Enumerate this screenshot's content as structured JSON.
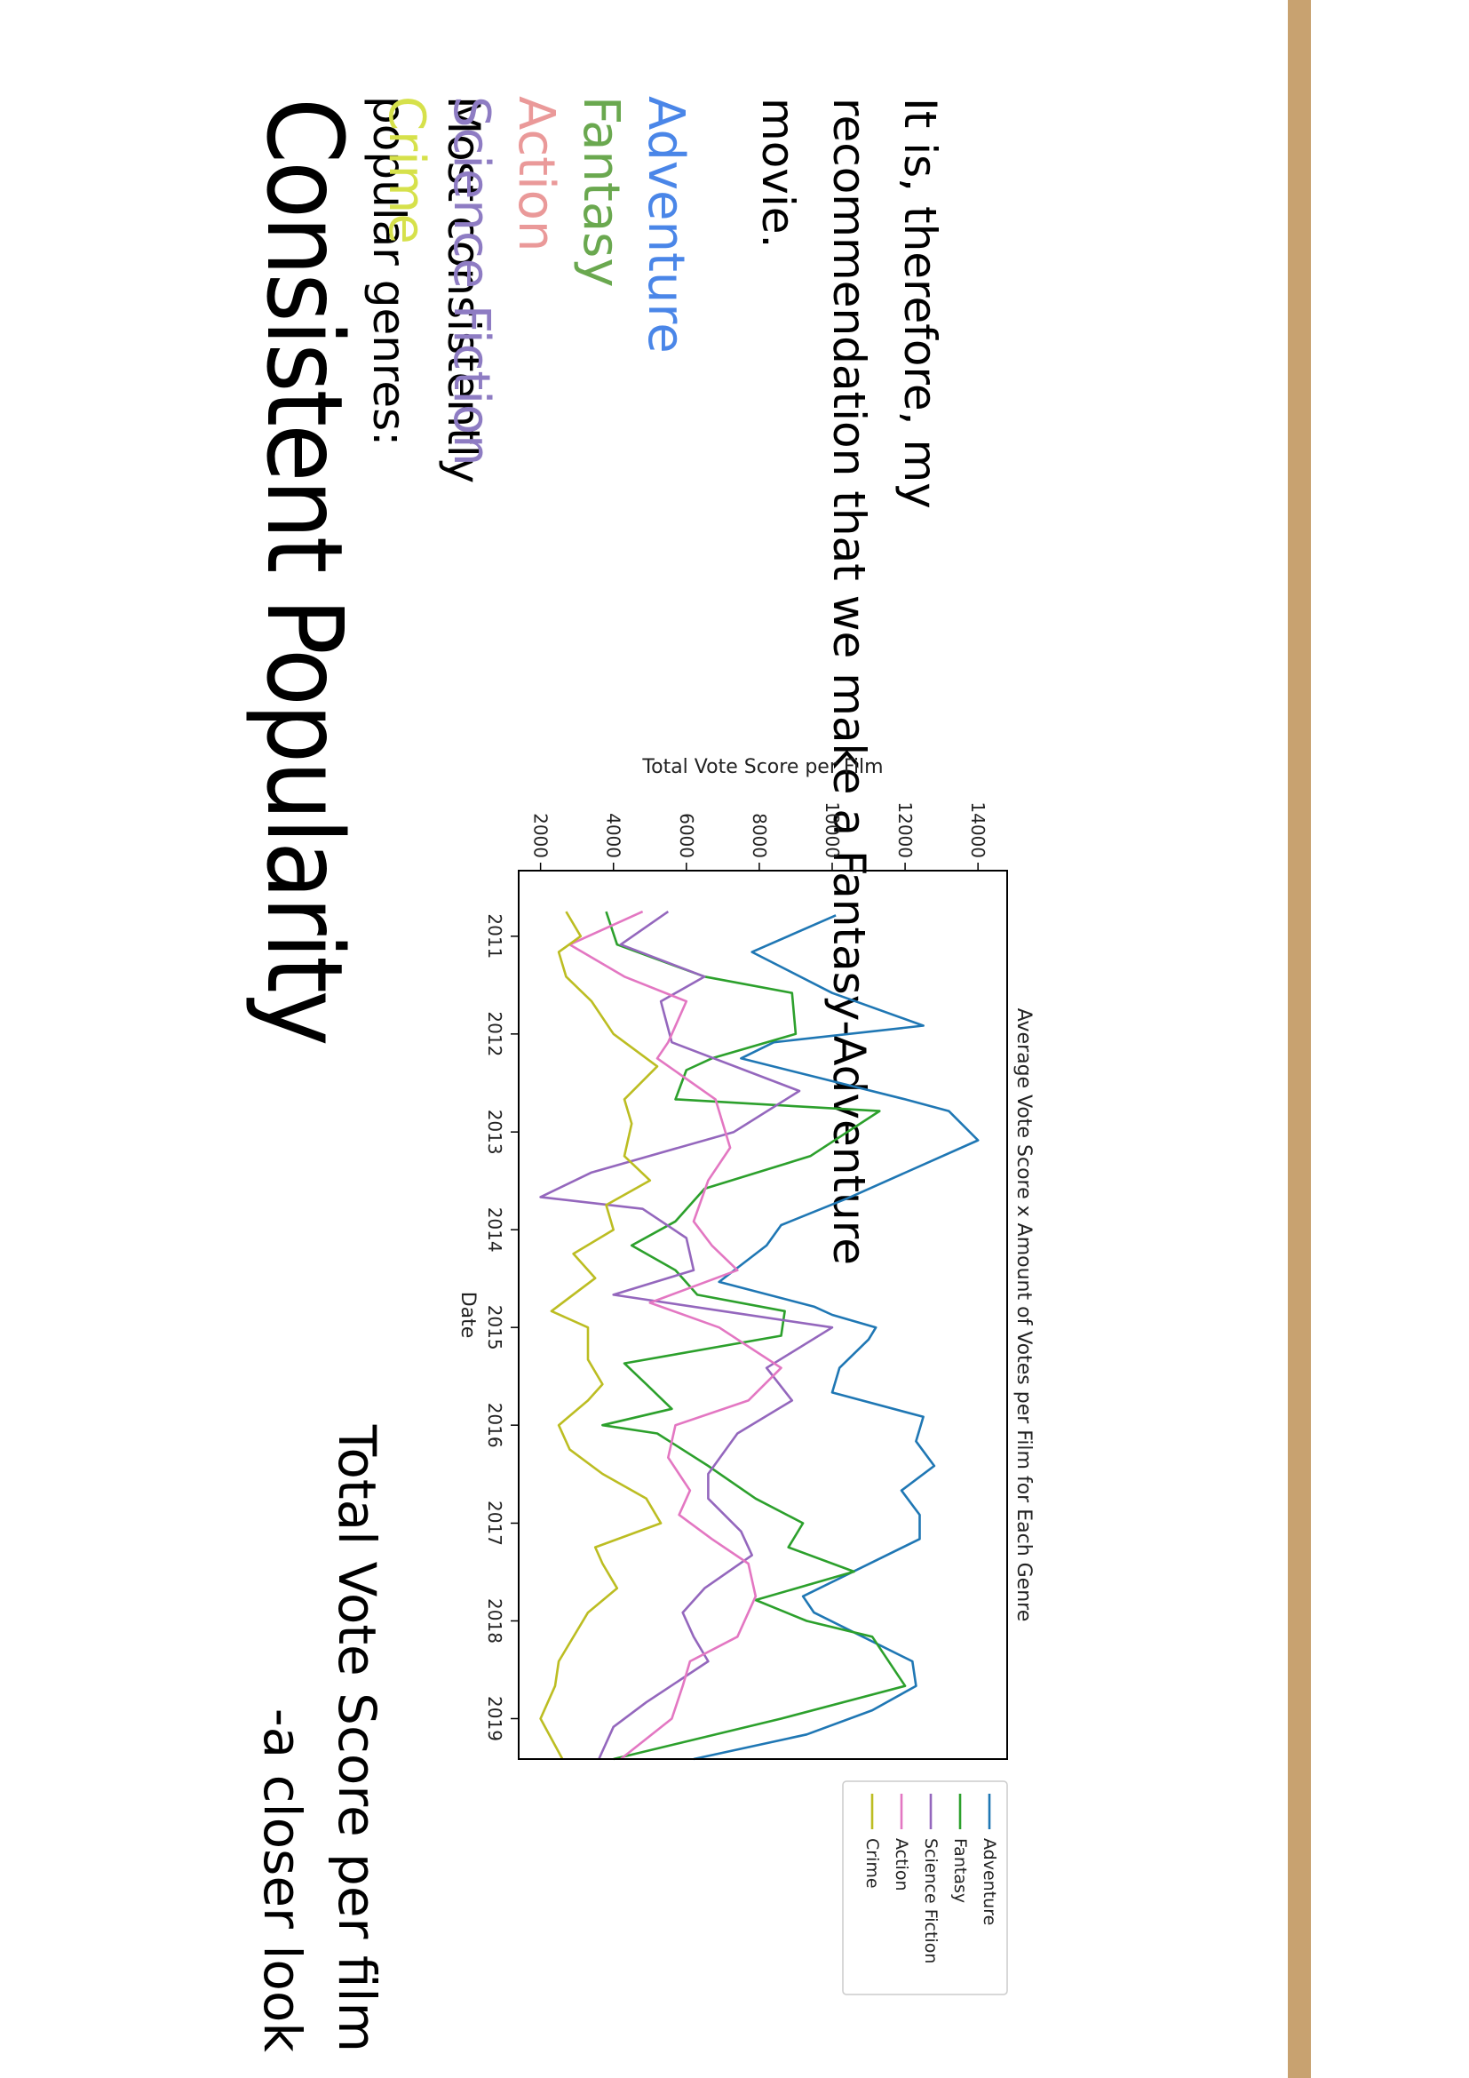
{
  "slide": {
    "title": "Consistent Popularity",
    "subtitle_lines": [
      "Total Vote Score per film",
      "-a closer look"
    ],
    "intro_lines": [
      "Most consistently",
      "popular genres:"
    ],
    "genres": [
      {
        "label": "Adventure",
        "color": "#4a86e8"
      },
      {
        "label": "Fantasy",
        "color": "#6aa84f"
      },
      {
        "label": "Action",
        "color": "#ea9999"
      },
      {
        "label": "Science Fiction",
        "color": "#8e7cc3"
      },
      {
        "label": "Crime",
        "color": "#d6e14b"
      }
    ],
    "closing_lines": [
      "It is, therefore, my",
      "recommendation that we make a Fantasy-Adventure movie."
    ],
    "accent_color": "#c8a270"
  },
  "chart_data": {
    "type": "line",
    "title": "Average Vote Score x Amount of Votes per Film for Each Genre",
    "xlabel": "Date",
    "ylabel": "Total Vote Score per Film",
    "xlim": [
      "2010-05-01",
      "2019-06-01"
    ],
    "ylim": [
      1400,
      14800
    ],
    "xticks": [
      "2011",
      "2012",
      "2013",
      "2014",
      "2015",
      "2016",
      "2017",
      "2018",
      "2019"
    ],
    "yticks": [
      2000,
      4000,
      6000,
      8000,
      10000,
      12000,
      14000
    ],
    "grid": false,
    "legend": "outside-right",
    "series": [
      {
        "name": "Adventure",
        "color": "#1f77b4",
        "points": [
          [
            "2010-10-15",
            10100
          ],
          [
            "2011-03-01",
            7800
          ],
          [
            "2011-08-01",
            10000
          ],
          [
            "2011-12-01",
            12500
          ],
          [
            "2012-02-01",
            8400
          ],
          [
            "2012-04-01",
            7500
          ],
          [
            "2012-09-01",
            12000
          ],
          [
            "2012-10-15",
            13200
          ],
          [
            "2013-02-01",
            14000
          ],
          [
            "2013-09-01",
            10500
          ],
          [
            "2013-12-15",
            8600
          ],
          [
            "2014-03-01",
            8200
          ],
          [
            "2014-07-15",
            6900
          ],
          [
            "2014-10-15",
            9500
          ],
          [
            "2014-11-15",
            10000
          ],
          [
            "2015-01-01",
            11200
          ],
          [
            "2015-02-15",
            11000
          ],
          [
            "2015-06-01",
            10200
          ],
          [
            "2015-09-01",
            10000
          ],
          [
            "2015-12-01",
            12500
          ],
          [
            "2016-03-01",
            12300
          ],
          [
            "2016-06-01",
            12800
          ],
          [
            "2016-09-01",
            11900
          ],
          [
            "2016-12-01",
            12400
          ],
          [
            "2017-03-01",
            12400
          ],
          [
            "2017-10-01",
            9200
          ],
          [
            "2017-12-01",
            9500
          ],
          [
            "2018-06-01",
            12200
          ],
          [
            "2018-09-01",
            12300
          ],
          [
            "2018-12-01",
            11100
          ],
          [
            "2019-03-01",
            9300
          ],
          [
            "2019-06-01",
            6200
          ]
        ]
      },
      {
        "name": "Fantasy",
        "color": "#2ca02c",
        "points": [
          [
            "2010-10-01",
            3800
          ],
          [
            "2011-02-01",
            4100
          ],
          [
            "2011-06-01",
            6500
          ],
          [
            "2011-08-01",
            8900
          ],
          [
            "2012-01-01",
            9000
          ],
          [
            "2012-04-01",
            6700
          ],
          [
            "2012-05-15",
            6000
          ],
          [
            "2012-09-01",
            5700
          ],
          [
            "2012-10-15",
            11300
          ],
          [
            "2013-04-01",
            9400
          ],
          [
            "2013-08-01",
            6500
          ],
          [
            "2013-12-01",
            5700
          ],
          [
            "2014-03-01",
            4500
          ],
          [
            "2014-06-01",
            5700
          ],
          [
            "2014-09-01",
            6300
          ],
          [
            "2014-11-01",
            8700
          ],
          [
            "2015-02-01",
            8600
          ],
          [
            "2015-05-15",
            4300
          ],
          [
            "2015-08-01",
            4900
          ],
          [
            "2015-11-01",
            5600
          ],
          [
            "2016-01-01",
            3700
          ],
          [
            "2016-02-01",
            5200
          ],
          [
            "2016-06-01",
            6600
          ],
          [
            "2016-10-01",
            7900
          ],
          [
            "2017-01-01",
            9200
          ],
          [
            "2017-04-01",
            8800
          ],
          [
            "2017-07-01",
            10600
          ],
          [
            "2017-10-15",
            7900
          ],
          [
            "2018-01-01",
            9300
          ],
          [
            "2018-03-01",
            11100
          ],
          [
            "2018-09-01",
            12000
          ],
          [
            "2019-01-01",
            8600
          ],
          [
            "2019-06-01",
            4000
          ]
        ]
      },
      {
        "name": "Science Fiction",
        "color": "#9467bd",
        "points": [
          [
            "2010-10-01",
            5500
          ],
          [
            "2011-02-01",
            4200
          ],
          [
            "2011-06-01",
            6500
          ],
          [
            "2011-09-01",
            5300
          ],
          [
            "2012-02-01",
            5600
          ],
          [
            "2012-08-01",
            9100
          ],
          [
            "2013-01-01",
            7300
          ],
          [
            "2013-06-01",
            3400
          ],
          [
            "2013-09-01",
            2000
          ],
          [
            "2013-10-15",
            4800
          ],
          [
            "2014-02-01",
            6000
          ],
          [
            "2014-06-01",
            6200
          ],
          [
            "2014-09-01",
            4000
          ],
          [
            "2014-11-01",
            7000
          ],
          [
            "2015-01-01",
            10000
          ],
          [
            "2015-06-01",
            8200
          ],
          [
            "2015-10-01",
            8900
          ],
          [
            "2016-02-01",
            7400
          ],
          [
            "2016-07-01",
            6600
          ],
          [
            "2016-10-01",
            6600
          ],
          [
            "2017-02-01",
            7500
          ],
          [
            "2017-05-01",
            7800
          ],
          [
            "2017-09-01",
            6500
          ],
          [
            "2017-12-01",
            5900
          ],
          [
            "2018-03-01",
            6200
          ],
          [
            "2018-06-01",
            6600
          ],
          [
            "2018-11-01",
            4900
          ],
          [
            "2019-02-01",
            4000
          ],
          [
            "2019-06-01",
            3600
          ]
        ]
      },
      {
        "name": "Action",
        "color": "#e377c2",
        "points": [
          [
            "2010-10-01",
            4800
          ],
          [
            "2011-02-01",
            2800
          ],
          [
            "2011-06-01",
            4300
          ],
          [
            "2011-09-01",
            6000
          ],
          [
            "2012-02-01",
            5500
          ],
          [
            "2012-04-01",
            5200
          ],
          [
            "2012-09-01",
            6800
          ],
          [
            "2013-03-01",
            7200
          ],
          [
            "2013-07-01",
            6600
          ],
          [
            "2013-12-01",
            6200
          ],
          [
            "2014-03-01",
            6700
          ],
          [
            "2014-06-01",
            7400
          ],
          [
            "2014-10-01",
            5000
          ],
          [
            "2015-01-01",
            6900
          ],
          [
            "2015-06-01",
            8600
          ],
          [
            "2015-10-01",
            7700
          ],
          [
            "2016-01-01",
            5700
          ],
          [
            "2016-05-01",
            5500
          ],
          [
            "2016-09-01",
            6100
          ],
          [
            "2016-12-01",
            5800
          ],
          [
            "2017-03-01",
            6700
          ],
          [
            "2017-06-01",
            7700
          ],
          [
            "2017-10-01",
            7900
          ],
          [
            "2018-03-01",
            7400
          ],
          [
            "2018-06-01",
            6100
          ],
          [
            "2018-09-01",
            5900
          ],
          [
            "2019-01-01",
            5600
          ],
          [
            "2019-06-01",
            4200
          ]
        ]
      },
      {
        "name": "Crime",
        "color": "#bcbd22",
        "points": [
          [
            "2010-10-01",
            2700
          ],
          [
            "2011-01-01",
            3100
          ],
          [
            "2011-03-01",
            2500
          ],
          [
            "2011-06-01",
            2700
          ],
          [
            "2011-09-01",
            3400
          ],
          [
            "2012-01-01",
            4000
          ],
          [
            "2012-05-01",
            5200
          ],
          [
            "2012-09-01",
            4300
          ],
          [
            "2012-12-01",
            4500
          ],
          [
            "2013-04-01",
            4300
          ],
          [
            "2013-07-01",
            5000
          ],
          [
            "2013-10-01",
            3800
          ],
          [
            "2014-01-01",
            4000
          ],
          [
            "2014-04-01",
            2900
          ],
          [
            "2014-07-01",
            3500
          ],
          [
            "2014-11-01",
            2300
          ],
          [
            "2015-01-01",
            3300
          ],
          [
            "2015-05-01",
            3300
          ],
          [
            "2015-08-01",
            3700
          ],
          [
            "2015-10-01",
            3300
          ],
          [
            "2016-01-01",
            2500
          ],
          [
            "2016-04-01",
            2800
          ],
          [
            "2016-07-01",
            3700
          ],
          [
            "2016-10-01",
            4900
          ],
          [
            "2017-01-01",
            5300
          ],
          [
            "2017-04-01",
            3500
          ],
          [
            "2017-06-01",
            3700
          ],
          [
            "2017-09-01",
            4100
          ],
          [
            "2017-12-01",
            3300
          ],
          [
            "2018-06-01",
            2500
          ],
          [
            "2018-09-01",
            2400
          ],
          [
            "2019-01-01",
            2000
          ],
          [
            "2019-06-01",
            2600
          ]
        ]
      }
    ]
  }
}
